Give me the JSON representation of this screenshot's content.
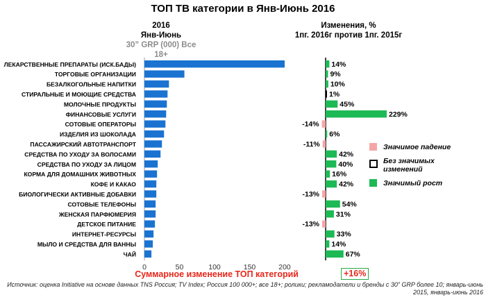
{
  "title": "ТОП ТВ категории в Янв-Июнь 2016",
  "left_header": {
    "line1": "2016",
    "line2": "Янв-Июнь",
    "line3": "30” GRP (000) Все 18+"
  },
  "right_header": {
    "line1": "Изменения, %",
    "line2": "1пг. 2016г против 1пг. 2015г"
  },
  "legend": [
    {
      "label": "Значимое падение",
      "color": "#f4a6a6"
    },
    {
      "label": "Без значимых изменений",
      "color": "#000000"
    },
    {
      "label": "Значимый рост",
      "color": "#1db954"
    }
  ],
  "footer": {
    "label": "Суммарное изменение ТОП категорий",
    "value": "+16%"
  },
  "source": "Источник: оценка Initiative на основе данных TNS Россия; TV Index; Россия 100 000+; все 18+; ролики; рекламодатели и бренды с 30” GRP более 10; январь-июнь 2015, январь-июнь 2016",
  "chart_data": [
    {
      "type": "bar",
      "orientation": "horizontal",
      "categories": [
        "ЛЕКАРСТВЕННЫЕ ПРЕПАРАТЫ (ИСК.БАДЫ)",
        "ТОРГОВЫЕ ОРГАНИЗАЦИИ",
        "БЕЗАЛКОГОЛЬНЫЕ НАПИТКИ",
        "СТИРАЛЬНЫЕ И МОЮЩИЕ СРЕДСТВА",
        "МОЛОЧНЫЕ ПРОДУКТЫ",
        "ФИНАНСОВЫЕ УСЛУГИ",
        "СОТОВЫЕ ОПЕРАТОРЫ",
        "ИЗДЕЛИЯ ИЗ ШОКОЛАДА",
        "ПАССАЖИРСКИЙ АВТОТРАНСПОРТ",
        "СРЕДСТВА ПО УХОДУ ЗА ВОЛОСАМИ",
        "СРЕДСТВА ПО УХОДУ ЗА ЛИЦОМ",
        "КОРМА ДЛЯ ДОМАШНИХ ЖИВОТНЫХ",
        "КОФЕ И КАКАО",
        "БИОЛОГИЧЕСКИ АКТИВНЫЕ ДОБАВКИ",
        "СОТОВЫЕ ТЕЛЕФОНЫ",
        "ЖЕНСКАЯ ПАРФЮМЕРИЯ",
        "ДЕТСКОЕ ПИТАНИЕ",
        "ИНТЕРНЕТ-РЕСУРСЫ",
        "МЫЛО И СРЕДСТВА ДЛЯ ВАННЫ",
        "ЧАЙ"
      ],
      "values": [
        200,
        57,
        35,
        33,
        32,
        31,
        30,
        28,
        25,
        23,
        19,
        18,
        17,
        17,
        16,
        16,
        15,
        13,
        12,
        10
      ],
      "xlim": [
        0,
        200
      ],
      "xticks": [
        0,
        50,
        100,
        150,
        200
      ],
      "color": "#1a73d1"
    },
    {
      "type": "bar",
      "orientation": "horizontal",
      "categories": [
        "ЛЕКАРСТВЕННЫЕ ПРЕПАРАТЫ (ИСК.БАДЫ)",
        "ТОРГОВЫЕ ОРГАНИЗАЦИИ",
        "БЕЗАЛКОГОЛЬНЫЕ НАПИТКИ",
        "СТИРАЛЬНЫЕ И МОЮЩИЕ СРЕДСТВА",
        "МОЛОЧНЫЕ ПРОДУКТЫ",
        "ФИНАНСОВЫЕ УСЛУГИ",
        "СОТОВЫЕ ОПЕРАТОРЫ",
        "ИЗДЕЛИЯ ИЗ ШОКОЛАДА",
        "ПАССАЖИРСКИЙ АВТОТРАНСПОРТ",
        "СРЕДСТВА ПО УХОДУ ЗА ВОЛОСАМИ",
        "СРЕДСТВА ПО УХОДУ ЗА ЛИЦОМ",
        "КОРМА ДЛЯ ДОМАШНИХ ЖИВОТНЫХ",
        "КОФЕ И КАКАО",
        "БИОЛОГИЧЕСКИ АКТИВНЫЕ ДОБАВКИ",
        "СОТОВЫЕ ТЕЛЕФОНЫ",
        "ЖЕНСКАЯ ПАРФЮМЕРИЯ",
        "ДЕТСКОЕ ПИТАНИЕ",
        "ИНТЕРНЕТ-РЕСУРСЫ",
        "МЫЛО И СРЕДСТВА ДЛЯ ВАННЫ",
        "ЧАЙ"
      ],
      "values": [
        14,
        9,
        10,
        1,
        45,
        229,
        -14,
        6,
        -11,
        42,
        40,
        16,
        42,
        -13,
        54,
        31,
        -13,
        33,
        14,
        67
      ],
      "labels": [
        "14%",
        "9%",
        "10%",
        "1%",
        "45%",
        "229%",
        "-14%",
        "6%",
        "-11%",
        "42%",
        "40%",
        "16%",
        "42%",
        "-13%",
        "54%",
        "31%",
        "-13%",
        "33%",
        "14%",
        "67%"
      ],
      "status": [
        "growth",
        "growth",
        "growth",
        "none",
        "growth",
        "growth",
        "decline",
        "growth",
        "decline",
        "growth",
        "growth",
        "growth",
        "growth",
        "decline",
        "growth",
        "growth",
        "decline",
        "growth",
        "growth",
        "growth"
      ],
      "colors": {
        "growth": "#1db954",
        "none": "#000000",
        "decline": "#f4a6a6"
      }
    }
  ]
}
